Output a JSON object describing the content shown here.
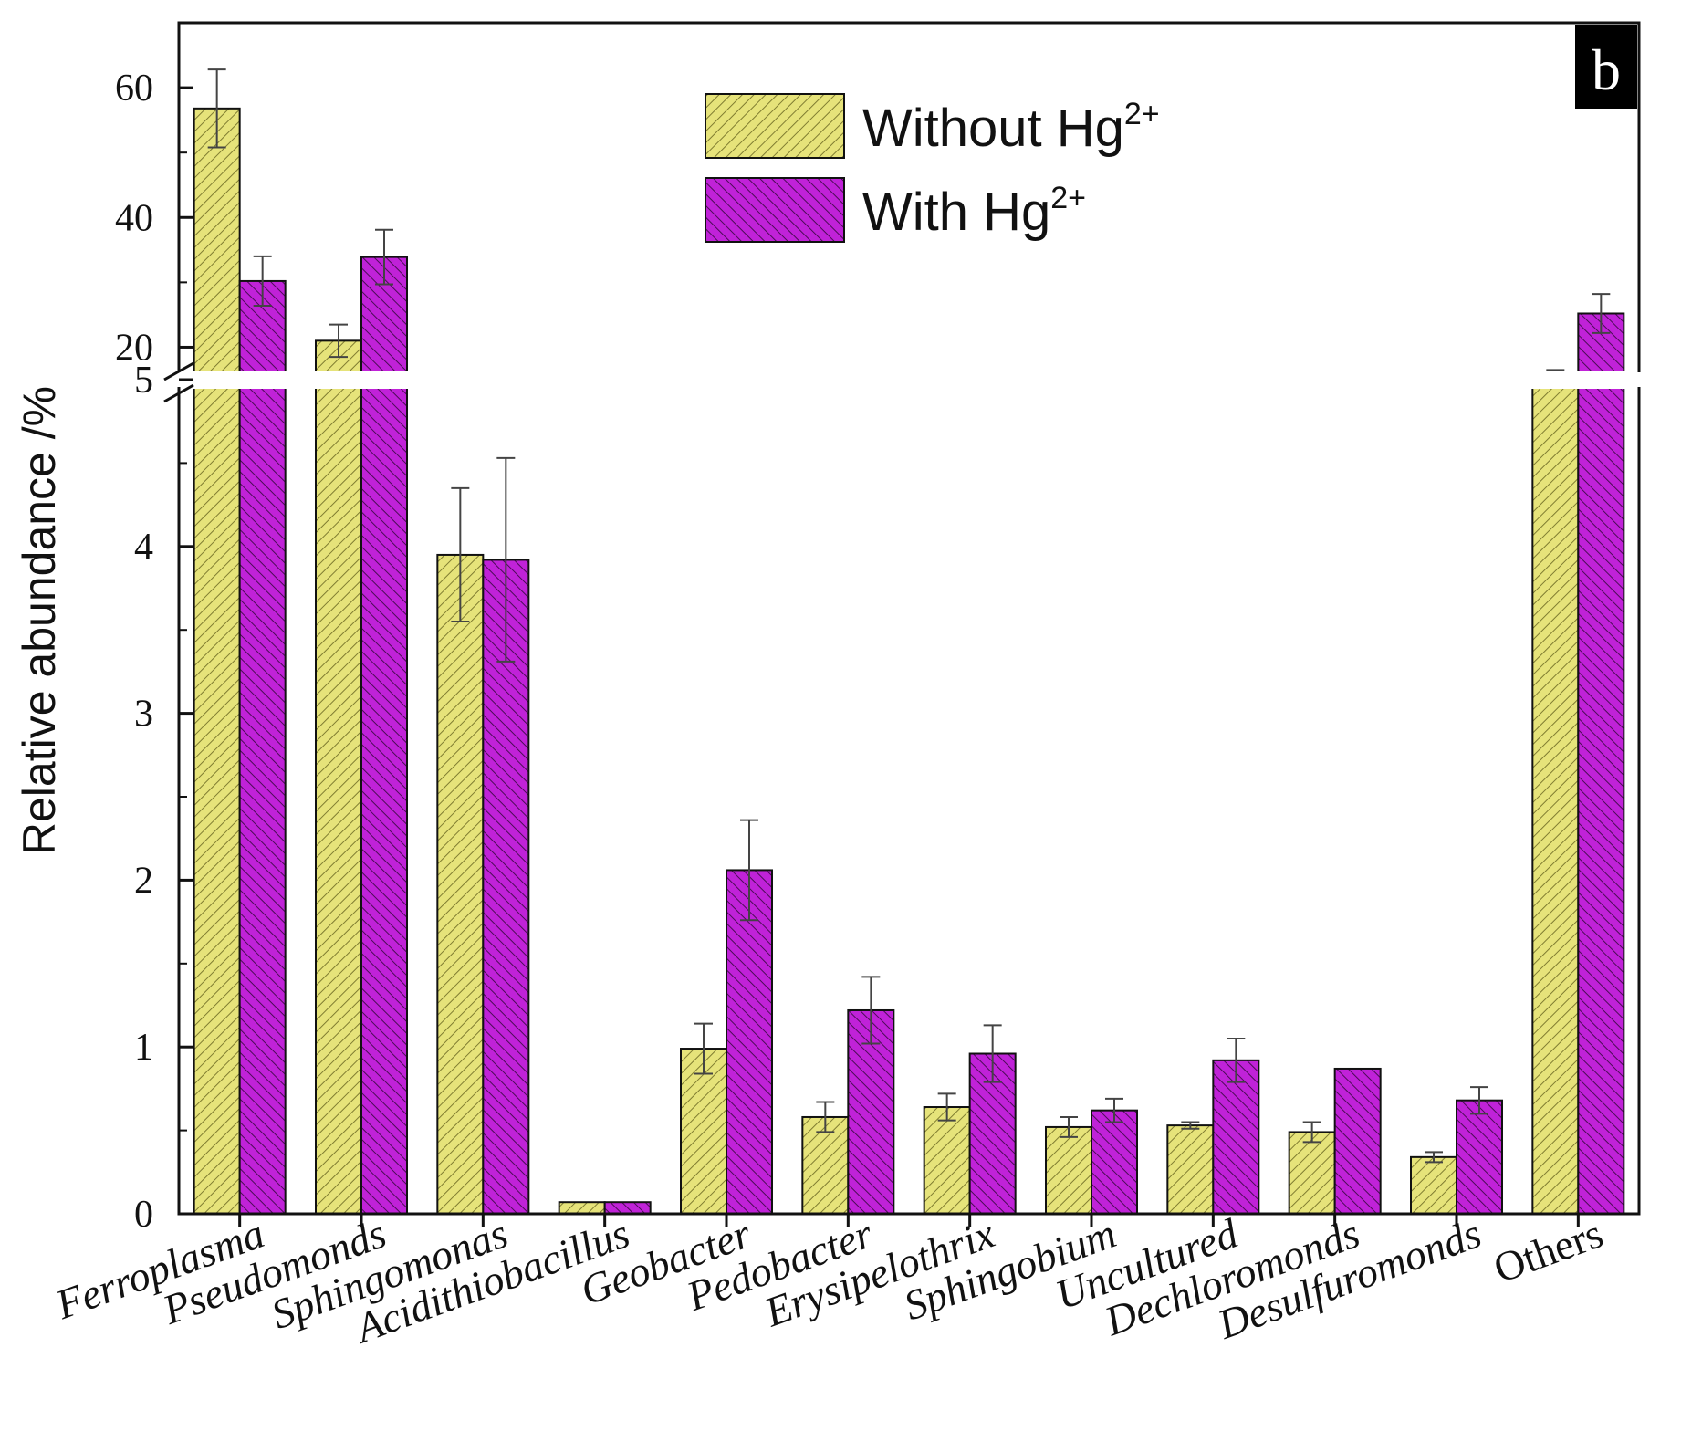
{
  "chart_data": {
    "type": "bar",
    "panel_label": "b",
    "ylabel": "Relative abundance /%",
    "xlabel": "",
    "y_axis": {
      "broken": true,
      "lower_range": [
        0,
        5
      ],
      "upper_range": [
        15,
        70
      ],
      "lower_ticks": [
        "0",
        "1",
        "2",
        "3",
        "4",
        "5"
      ],
      "upper_ticks": [
        "20",
        "40",
        "60"
      ]
    },
    "categories": [
      "Ferroplasma",
      "Pseudomonds",
      "Sphingomonas",
      "Acidithiobacillus",
      "Geobacter",
      "Pedobacter",
      "Erysipelothrix",
      "Sphingobium",
      "Uncultured",
      "Dechloromonds",
      "Desulfuromonds",
      "Others"
    ],
    "italic_categories": [
      true,
      true,
      true,
      true,
      true,
      true,
      true,
      true,
      true,
      true,
      true,
      false
    ],
    "legend": {
      "position": "top-center",
      "entries": [
        {
          "base": "Without Hg",
          "sup": "2+"
        },
        {
          "base": "With Hg",
          "sup": "2+"
        }
      ]
    },
    "series": [
      {
        "name": "Without Hg2+",
        "color": "#E6E37A",
        "values": [
          56.8,
          21,
          3.95,
          0.07,
          0.99,
          0.58,
          0.64,
          0.52,
          0.53,
          0.49,
          0.34,
          14.5
        ],
        "errors": [
          6,
          2.5,
          0.4,
          0,
          0.15,
          0.09,
          0.08,
          0.06,
          0.02,
          0.06,
          0.03,
          2
        ]
      },
      {
        "name": "With Hg2+",
        "color": "#C022D8",
        "values": [
          30.2,
          33.9,
          3.92,
          0.07,
          2.06,
          1.22,
          0.96,
          0.62,
          0.92,
          0.87,
          0.68,
          25.2
        ],
        "errors": [
          3.8,
          4.2,
          0.61,
          0,
          0.3,
          0.2,
          0.17,
          0.07,
          0.13,
          0,
          0.08,
          3
        ]
      }
    ]
  }
}
